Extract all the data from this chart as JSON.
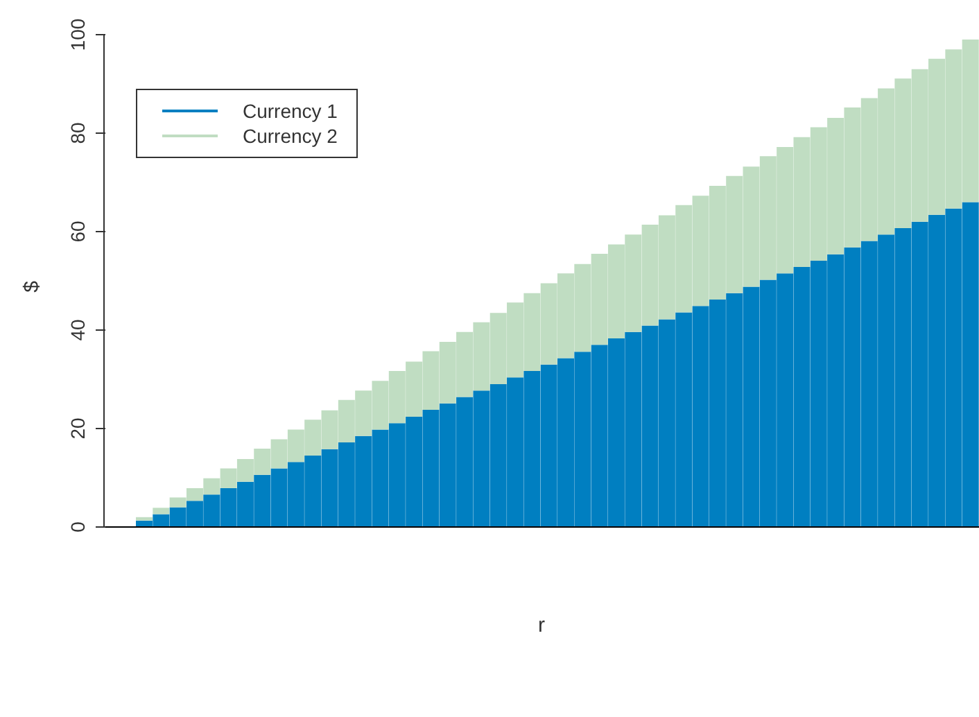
{
  "chart_data": {
    "type": "bar",
    "stacked": true,
    "xlabel": "r",
    "ylabel": "$",
    "categories": [
      null,
      null,
      null,
      null,
      null,
      null,
      null,
      null,
      null,
      null,
      null,
      null,
      null,
      null,
      null,
      null,
      null,
      null,
      null,
      null,
      null,
      null,
      null,
      null,
      null,
      null,
      null,
      null,
      null,
      null,
      null,
      null,
      null,
      null,
      null,
      null,
      null,
      null,
      null,
      null,
      null,
      null,
      null,
      null,
      null,
      null,
      null,
      null,
      null,
      null
    ],
    "series": [
      {
        "name": "Currency 1",
        "color": "#007fc1",
        "values": [
          1.3,
          2.6,
          4.0,
          5.3,
          6.6,
          7.9,
          9.2,
          10.6,
          11.9,
          13.2,
          14.5,
          15.8,
          17.2,
          18.5,
          19.8,
          21.1,
          22.4,
          23.8,
          25.1,
          26.4,
          27.7,
          29.0,
          30.4,
          31.7,
          33.0,
          34.3,
          35.6,
          37.0,
          38.3,
          39.6,
          40.9,
          42.2,
          43.6,
          44.9,
          46.2,
          47.5,
          48.8,
          50.2,
          51.5,
          52.8,
          54.1,
          55.4,
          56.8,
          58.1,
          59.4,
          60.7,
          62.0,
          63.4,
          64.7,
          66.0
        ]
      },
      {
        "name": "Currency 2",
        "color": "#c0ddc2",
        "values": [
          0.7,
          1.3,
          2.0,
          2.6,
          3.3,
          4.0,
          4.6,
          5.3,
          5.9,
          6.6,
          7.3,
          7.9,
          8.6,
          9.2,
          9.9,
          10.6,
          11.2,
          11.9,
          12.5,
          13.2,
          13.9,
          14.5,
          15.2,
          15.8,
          16.5,
          17.2,
          17.8,
          18.5,
          19.1,
          19.8,
          20.5,
          21.1,
          21.8,
          22.4,
          23.1,
          23.8,
          24.4,
          25.1,
          25.7,
          26.4,
          27.1,
          27.7,
          28.4,
          29.0,
          29.7,
          30.4,
          31.0,
          31.7,
          32.3,
          33.0
        ]
      }
    ],
    "ylim": [
      0,
      100
    ],
    "yticks": [
      0,
      20,
      40,
      60,
      80,
      100
    ],
    "legend": "top left",
    "tick_labels": "y"
  }
}
